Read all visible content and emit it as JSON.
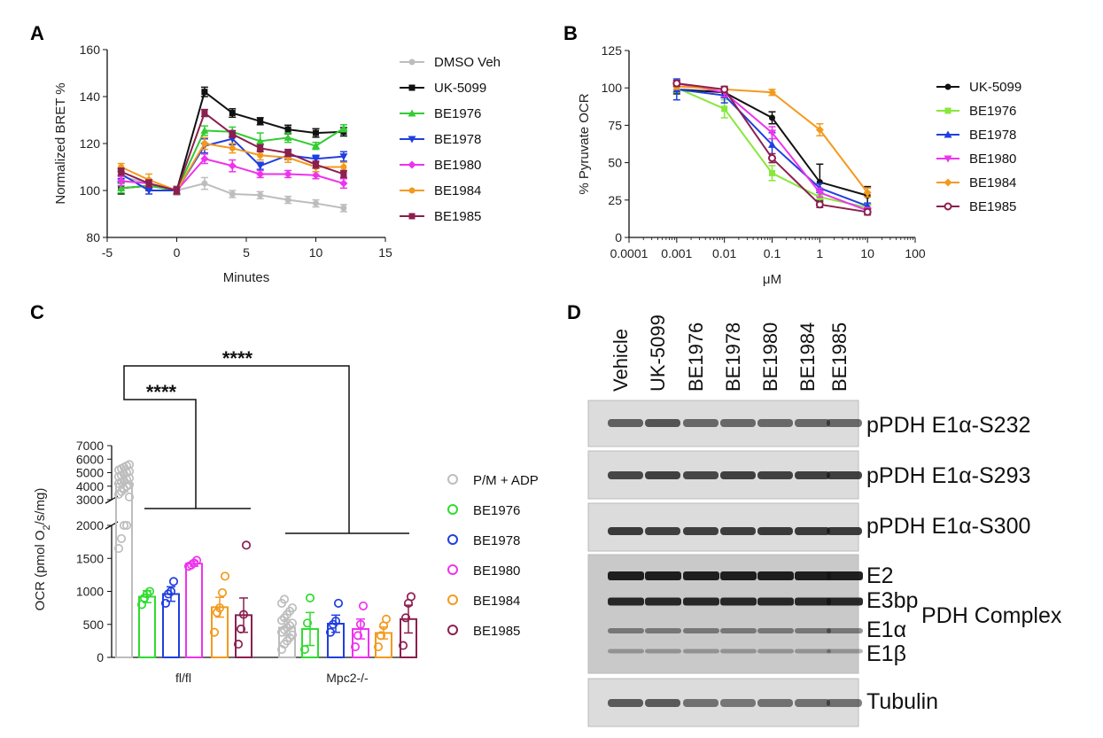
{
  "panel_labels": {
    "a": "A",
    "b": "B",
    "c": "C",
    "d": "D"
  },
  "chart_data": [
    {
      "panel": "A",
      "type": "line",
      "title": "",
      "xlabel": "Minutes",
      "ylabel": "Normalized BRET %",
      "xlim": [
        -5,
        15
      ],
      "ylim": [
        80,
        160
      ],
      "xticks": [
        -5,
        0,
        5,
        10,
        15
      ],
      "yticks": [
        80,
        100,
        120,
        140,
        160
      ],
      "x": [
        -4,
        -2,
        0,
        2,
        4,
        6,
        8,
        10,
        12
      ],
      "series": [
        {
          "name": "DMSO Veh",
          "color": "#bdbdbd",
          "marker": "circle",
          "values": [
            106,
            103,
            100,
            103,
            98.5,
            98,
            96,
            94.5,
            92.5
          ],
          "err": [
            1.5,
            1.5,
            2,
            2.5,
            1.5,
            1.5,
            1.5,
            1.5,
            1.5
          ]
        },
        {
          "name": "UK-5099",
          "color": "#111111",
          "marker": "square",
          "values": [
            101,
            102,
            100,
            142,
            133,
            129.5,
            126,
            124.5,
            125
          ],
          "err": [
            2.5,
            2,
            1.5,
            2,
            1.8,
            1.5,
            1.8,
            1.8,
            1.8
          ]
        },
        {
          "name": "BE1976",
          "color": "#33cc33",
          "marker": "triangle-up",
          "values": [
            101,
            102,
            100,
            125.5,
            125,
            121,
            122.5,
            119,
            126.5
          ],
          "err": [
            2,
            1.5,
            1.5,
            2,
            2,
            3.5,
            2,
            1.5,
            1.5
          ]
        },
        {
          "name": "BE1978",
          "color": "#1f3fe0",
          "marker": "triangle-down",
          "values": [
            107,
            100,
            100,
            119,
            122,
            110.5,
            115,
            113.5,
            114.5
          ],
          "err": [
            2,
            1.5,
            1.5,
            3,
            2.5,
            1.5,
            1.8,
            1.5,
            2
          ]
        },
        {
          "name": "BE1980",
          "color": "#ee33ee",
          "marker": "diamond",
          "values": [
            104,
            103,
            100,
            113.5,
            110.5,
            107,
            107,
            106.5,
            103
          ],
          "err": [
            2,
            1.5,
            1.5,
            2,
            2.5,
            1.5,
            1.5,
            1.5,
            2
          ]
        },
        {
          "name": "BE1984",
          "color": "#f39a1e",
          "marker": "circle",
          "values": [
            110,
            104.5,
            100,
            120,
            118,
            115,
            114,
            110,
            110
          ],
          "err": [
            1.5,
            2.5,
            1.5,
            2.5,
            2,
            2,
            2,
            2,
            2
          ]
        },
        {
          "name": "BE1985",
          "color": "#8b1f4f",
          "marker": "square",
          "values": [
            108,
            103,
            100,
            133,
            124,
            118,
            116,
            111,
            107
          ],
          "err": [
            1.5,
            1.5,
            1.5,
            1.5,
            1.5,
            1.5,
            1.5,
            1.5,
            1.5
          ]
        }
      ]
    },
    {
      "panel": "B",
      "type": "line",
      "title": "",
      "xlabel": "μM",
      "ylabel": "% Pyruvate OCR",
      "xscale": "log",
      "xlim": [
        0.0001,
        100
      ],
      "ylim": [
        0,
        125
      ],
      "xticks": [
        "0.0001",
        "0.001",
        "0.01",
        "0.1",
        "1",
        "10",
        "100"
      ],
      "yticks": [
        0,
        25,
        50,
        75,
        100,
        125
      ],
      "x": [
        0.001,
        0.01,
        0.1,
        1,
        10
      ],
      "series": [
        {
          "name": "UK-5099",
          "color": "#111111",
          "marker": "circle",
          "values": [
            99,
            97,
            80,
            37,
            28
          ],
          "err": [
            3,
            3,
            4,
            12,
            6
          ]
        },
        {
          "name": "BE1976",
          "color": "#88e83a",
          "marker": "square",
          "values": [
            100,
            86,
            43,
            27,
            20
          ],
          "err": [
            3,
            6,
            5,
            3,
            2
          ]
        },
        {
          "name": "BE1978",
          "color": "#1f3fe0",
          "marker": "triangle-up",
          "values": [
            99,
            95,
            62,
            33,
            21
          ],
          "err": [
            7,
            5,
            8,
            3,
            2
          ]
        },
        {
          "name": "BE1980",
          "color": "#ee33ee",
          "marker": "triangle-down",
          "values": [
            103,
            97,
            70,
            30,
            18
          ],
          "err": [
            2,
            3,
            4,
            3,
            2
          ]
        },
        {
          "name": "BE1984",
          "color": "#f39a1e",
          "marker": "diamond",
          "values": [
            101,
            99,
            97,
            72,
            30
          ],
          "err": [
            2,
            2,
            2,
            4,
            3
          ]
        },
        {
          "name": "BE1985",
          "color": "#8b1f4f",
          "marker": "circle-open",
          "values": [
            103,
            99,
            53,
            22,
            17
          ],
          "err": [
            2,
            2,
            3,
            2,
            2
          ]
        }
      ]
    },
    {
      "panel": "C",
      "type": "bar",
      "title": "",
      "xlabel": "",
      "ylabel_prefix": "OCR (pmol O",
      "ylabel_sub": "2",
      "ylabel_suffix": "/s/mg)",
      "ylim_lower": [
        0,
        2000
      ],
      "ylim_upper": [
        3000,
        7000
      ],
      "yticks_lower": [
        0,
        500,
        1000,
        1500,
        2000
      ],
      "yticks_upper": [
        3000,
        4000,
        5000,
        6000,
        7000
      ],
      "groups": [
        "fl/fl",
        "Mpc2-/-"
      ],
      "significance": [
        "****",
        "****"
      ],
      "series": [
        {
          "name": "P/M + ADP",
          "color": "#bdbdbd",
          "values": [
            4200,
            450
          ],
          "err": [
            600,
            120
          ],
          "points_fl": [
            1650,
            1800,
            2000,
            2000,
            3200,
            3400,
            3600,
            3800,
            4000,
            4100,
            4200,
            4300,
            4400,
            4500,
            4600,
            4700,
            4800,
            4900,
            5000,
            5100,
            5200,
            5300,
            5400,
            5500,
            5600
          ],
          "points_ko": [
            120,
            200,
            250,
            300,
            340,
            380,
            420,
            450,
            480,
            520,
            560,
            600,
            650,
            700,
            750,
            820,
            880
          ]
        },
        {
          "name": "BE1976",
          "color": "#2fdc2f",
          "values": [
            920,
            430
          ],
          "err": [
            90,
            250
          ],
          "points_fl": [
            800,
            900,
            960,
            1000
          ],
          "points_ko": [
            120,
            520,
            900
          ]
        },
        {
          "name": "BE1978",
          "color": "#1f3fe0",
          "values": [
            960,
            510
          ],
          "err": [
            110,
            130
          ],
          "points_fl": [
            820,
            960,
            1000,
            1150
          ],
          "points_ko": [
            380,
            500,
            550,
            820
          ]
        },
        {
          "name": "BE1980",
          "color": "#ee33ee",
          "values": [
            1420,
            430
          ],
          "err": [
            40,
            150
          ],
          "points_fl": [
            1380,
            1400,
            1430,
            1470
          ],
          "points_ko": [
            160,
            330,
            500,
            780
          ]
        },
        {
          "name": "BE1984",
          "color": "#f39a1e",
          "values": [
            760,
            370
          ],
          "err": [
            150,
            90
          ],
          "points_fl": [
            380,
            680,
            750,
            980,
            1230
          ],
          "points_ko": [
            160,
            330,
            480,
            580
          ]
        },
        {
          "name": "BE1985",
          "color": "#8b1f4f",
          "values": [
            640,
            580
          ],
          "err": [
            260,
            210
          ],
          "points_fl": [
            200,
            430,
            650,
            1700
          ],
          "points_ko": [
            180,
            600,
            820,
            920
          ]
        }
      ]
    }
  ],
  "western_blot": {
    "panel": "D",
    "lanes": [
      "Vehicle",
      "UK-5099",
      "BE1976",
      "BE1978",
      "BE1980",
      "BE1984",
      "BE1985"
    ],
    "blots": [
      {
        "label": "pPDH E1α-S232",
        "intensity": [
          0.55,
          0.65,
          0.5,
          0.5,
          0.5,
          0.5,
          0.5
        ]
      },
      {
        "label": "pPDH E1α-S293",
        "intensity": [
          0.75,
          0.8,
          0.75,
          0.8,
          0.78,
          0.8,
          0.8
        ]
      },
      {
        "label": "pPDH E1α-S300",
        "intensity": [
          0.85,
          0.8,
          0.8,
          0.82,
          0.85,
          0.85,
          0.85
        ]
      },
      {
        "label": "PDH Complex",
        "bands": [
          "E2",
          "E3bp",
          "E1α",
          "E1β"
        ]
      },
      {
        "label": "Tubulin",
        "intensity": [
          0.6,
          0.6,
          0.45,
          0.4,
          0.45,
          0.45,
          0.45
        ]
      }
    ]
  }
}
